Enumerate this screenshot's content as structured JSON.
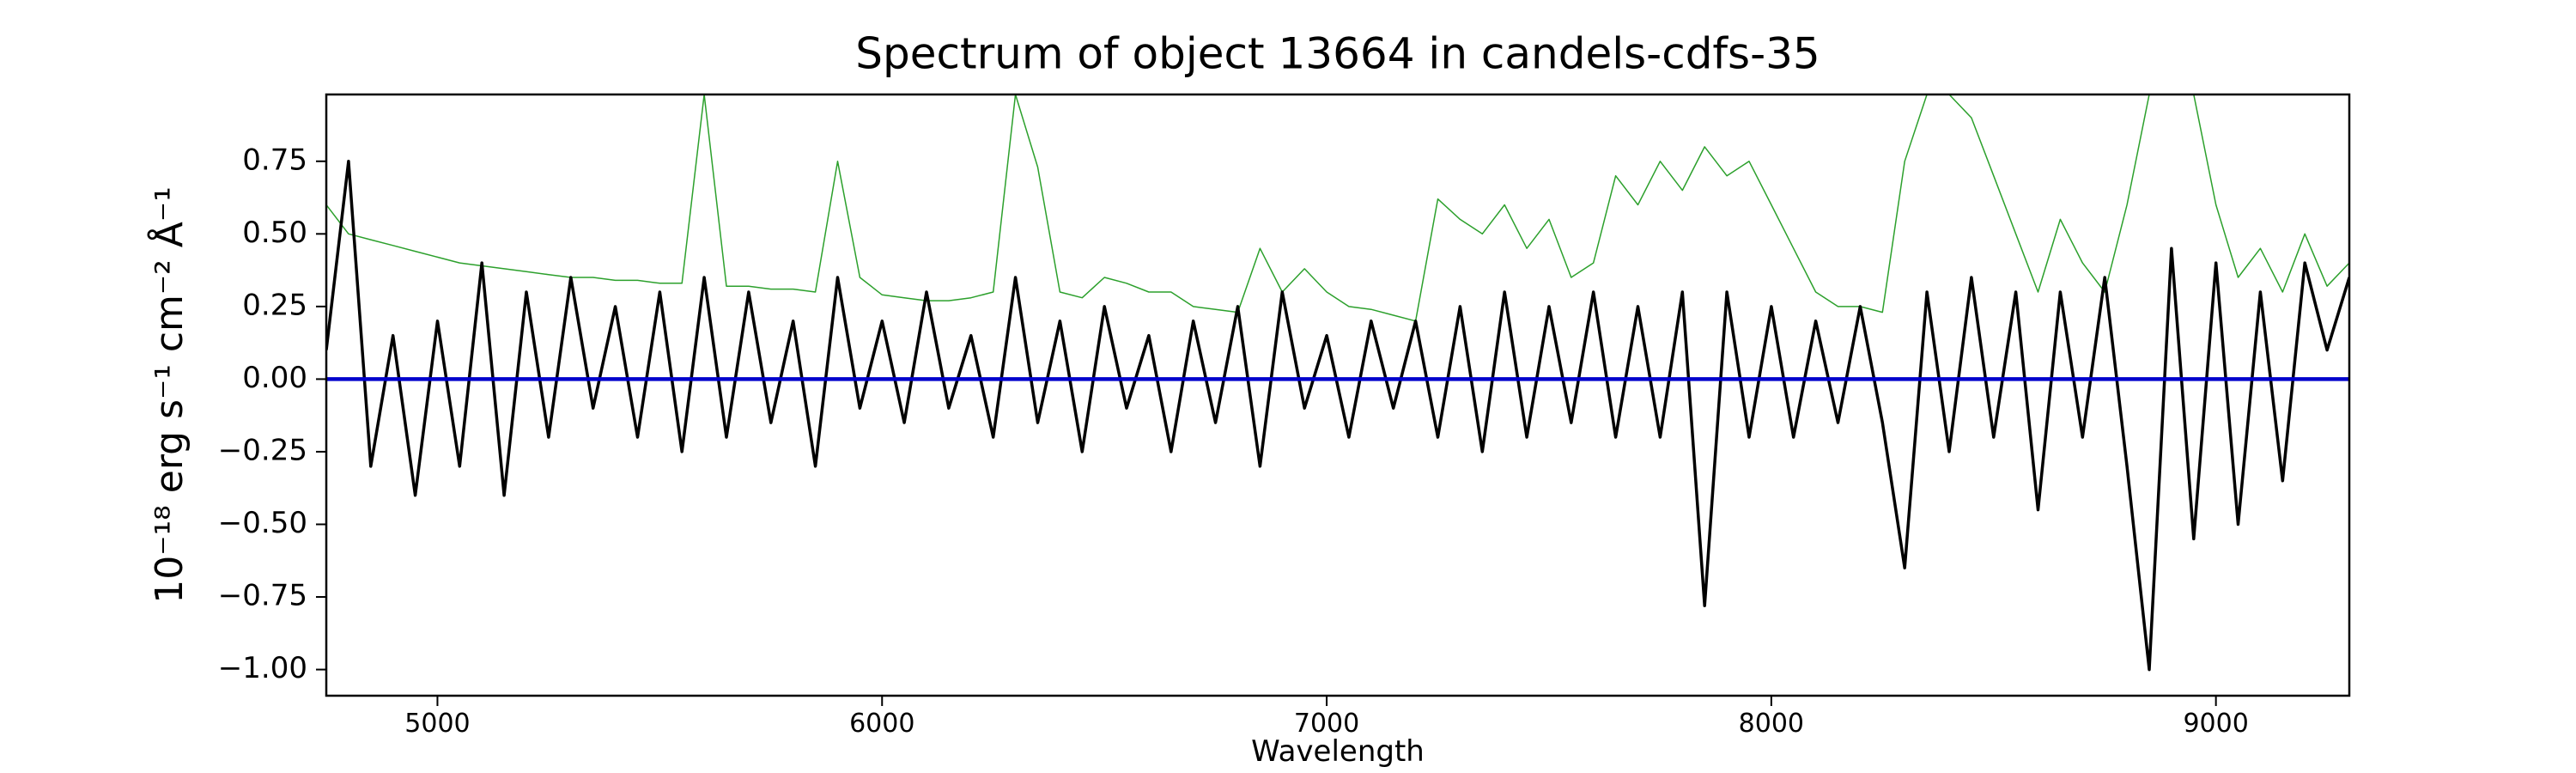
{
  "chart_data": {
    "type": "line",
    "title": "Spectrum of object 13664 in candels-cdfs-35",
    "x_label": "Wavelength",
    "y_label": "10⁻¹⁸ erg s⁻¹ cm⁻² Å⁻¹",
    "x": [
      4750,
      4800,
      4850,
      4900,
      4950,
      5000,
      5050,
      5100,
      5150,
      5200,
      5250,
      5300,
      5350,
      5400,
      5450,
      5500,
      5550,
      5600,
      5650,
      5700,
      5750,
      5800,
      5850,
      5900,
      5950,
      6000,
      6050,
      6100,
      6150,
      6200,
      6250,
      6300,
      6350,
      6400,
      6450,
      6500,
      6550,
      6600,
      6650,
      6700,
      6750,
      6800,
      6850,
      6900,
      6950,
      7000,
      7050,
      7100,
      7150,
      7200,
      7250,
      7300,
      7350,
      7400,
      7450,
      7500,
      7550,
      7600,
      7650,
      7700,
      7750,
      7800,
      7850,
      7900,
      7950,
      8000,
      8050,
      8100,
      8150,
      8200,
      8250,
      8300,
      8350,
      8400,
      8450,
      8500,
      8550,
      8600,
      8650,
      8700,
      8750,
      8800,
      8850,
      8900,
      8950,
      9000,
      9050,
      9100,
      9150,
      9200,
      9250,
      9300
    ],
    "series": [
      {
        "color": "#2ca02c",
        "values": [
          0.6,
          0.5,
          0.48,
          0.46,
          0.44,
          0.42,
          0.4,
          0.39,
          0.38,
          0.37,
          0.36,
          0.35,
          0.35,
          0.34,
          0.34,
          0.33,
          0.33,
          0.98,
          0.32,
          0.32,
          0.31,
          0.31,
          0.3,
          0.75,
          0.35,
          0.29,
          0.28,
          0.27,
          0.27,
          0.28,
          0.3,
          0.98,
          0.73,
          0.3,
          0.28,
          0.35,
          0.33,
          0.3,
          0.3,
          0.25,
          0.24,
          0.23,
          0.45,
          0.3,
          0.38,
          0.3,
          0.25,
          0.24,
          0.22,
          0.2,
          0.62,
          0.55,
          0.5,
          0.6,
          0.45,
          0.55,
          0.35,
          0.4,
          0.7,
          0.6,
          0.75,
          0.65,
          0.8,
          0.7,
          0.75,
          0.6,
          0.45,
          0.3,
          0.25,
          0.25,
          0.23,
          0.75,
          0.98,
          0.98,
          0.9,
          0.7,
          0.5,
          0.3,
          0.55,
          0.4,
          0.3,
          0.6,
          0.98,
          0.98,
          0.98,
          0.6,
          0.35,
          0.45,
          0.3,
          0.5,
          0.32,
          0.4
        ]
      },
      {
        "color": "#000000",
        "values": [
          0.1,
          0.75,
          -0.3,
          0.15,
          -0.4,
          0.2,
          -0.3,
          0.4,
          -0.4,
          0.3,
          -0.2,
          0.35,
          -0.1,
          0.25,
          -0.2,
          0.3,
          -0.25,
          0.35,
          -0.2,
          0.3,
          -0.15,
          0.2,
          -0.3,
          0.35,
          -0.1,
          0.2,
          -0.15,
          0.3,
          -0.1,
          0.15,
          -0.2,
          0.35,
          -0.15,
          0.2,
          -0.25,
          0.25,
          -0.1,
          0.15,
          -0.25,
          0.2,
          -0.15,
          0.25,
          -0.3,
          0.3,
          -0.1,
          0.15,
          -0.2,
          0.2,
          -0.1,
          0.2,
          -0.2,
          0.25,
          -0.25,
          0.3,
          -0.2,
          0.25,
          -0.15,
          0.3,
          -0.2,
          0.25,
          -0.2,
          0.3,
          -0.78,
          0.3,
          -0.2,
          0.25,
          -0.2,
          0.2,
          -0.15,
          0.25,
          -0.15,
          -0.65,
          0.3,
          -0.25,
          0.35,
          -0.2,
          0.3,
          -0.45,
          0.3,
          -0.2,
          0.35,
          -0.3,
          -1.0,
          0.45,
          -0.55,
          0.4,
          -0.5,
          0.3,
          -0.35,
          0.4,
          0.1,
          0.35
        ]
      },
      {
        "color": "#0000cc",
        "values": [
          0,
          0,
          0,
          0,
          0,
          0,
          0,
          0,
          0,
          0,
          0,
          0,
          0,
          0,
          0,
          0,
          0,
          0,
          0,
          0,
          0,
          0,
          0,
          0,
          0,
          0,
          0,
          0,
          0,
          0,
          0,
          0,
          0,
          0,
          0,
          0,
          0,
          0,
          0,
          0,
          0,
          0,
          0,
          0,
          0,
          0,
          0,
          0,
          0,
          0,
          0,
          0,
          0,
          0,
          0,
          0,
          0,
          0,
          0,
          0,
          0,
          0,
          0,
          0,
          0,
          0,
          0,
          0,
          0,
          0,
          0,
          0,
          0,
          0,
          0,
          0,
          0,
          0,
          0,
          0,
          0,
          0,
          0,
          0,
          0,
          0,
          0,
          0,
          0,
          0,
          0,
          0
        ]
      }
    ],
    "xlim": [
      4750,
      9300
    ],
    "ylim": [
      -1.09,
      0.98
    ],
    "xticks": [
      5000,
      6000,
      7000,
      8000,
      9000
    ],
    "yticks": [
      {
        "value": -1,
        "label": "−1.00"
      },
      {
        "value": -0.75,
        "label": "−0.75"
      },
      {
        "value": -0.5,
        "label": "−0.50"
      },
      {
        "value": -0.25,
        "label": "−0.25"
      },
      {
        "value": 0,
        "label": "0.00"
      },
      {
        "value": 0.25,
        "label": "0.25"
      },
      {
        "value": 0.5,
        "label": "0.50"
      },
      {
        "value": 0.75,
        "label": "0.75"
      }
    ]
  }
}
